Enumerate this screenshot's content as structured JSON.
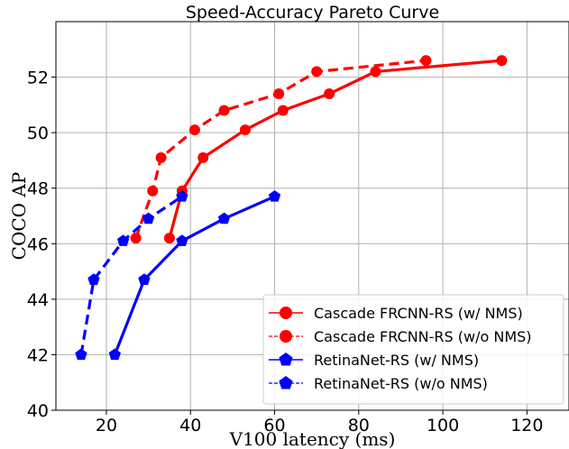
{
  "chart_data": {
    "type": "line",
    "title": "Speed-Accuracy Pareto Curve",
    "xlabel": "V100 latency (ms)",
    "ylabel": "COCO AP",
    "xlim": [
      8,
      130
    ],
    "ylim": [
      40,
      54
    ],
    "xticks": [
      20,
      40,
      60,
      80,
      100,
      120
    ],
    "yticks": [
      40,
      42,
      44,
      46,
      48,
      50,
      52
    ],
    "grid": true,
    "legend_position": "lower-right",
    "series": [
      {
        "name": "Cascade FRCNN-RS (w/ NMS)",
        "color": "#ff0000",
        "line_style": "solid",
        "marker": "circle",
        "x": [
          35,
          38,
          43,
          53,
          62,
          73,
          84,
          114
        ],
        "y": [
          46.2,
          47.9,
          49.1,
          50.1,
          50.8,
          51.4,
          52.2,
          52.6
        ]
      },
      {
        "name": "Cascade FRCNN-RS (w/o NMS)",
        "color": "#ff0000",
        "line_style": "dashed",
        "marker": "circle",
        "x": [
          27,
          31,
          33,
          41,
          48,
          61,
          70,
          96
        ],
        "y": [
          46.2,
          47.9,
          49.1,
          50.1,
          50.8,
          51.4,
          52.2,
          52.6
        ]
      },
      {
        "name": "RetinaNet-RS (w/ NMS)",
        "color": "#0000ff",
        "line_style": "solid",
        "marker": "pentagon",
        "x": [
          22,
          29,
          38,
          48,
          60
        ],
        "y": [
          42.0,
          44.7,
          46.1,
          46.9,
          47.7
        ]
      },
      {
        "name": "RetinaNet-RS (w/o NMS)",
        "color": "#0000ff",
        "line_style": "dashed",
        "marker": "pentagon",
        "x": [
          14,
          17,
          24,
          30,
          38
        ],
        "y": [
          42.0,
          44.7,
          46.1,
          46.9,
          47.7
        ]
      }
    ]
  }
}
